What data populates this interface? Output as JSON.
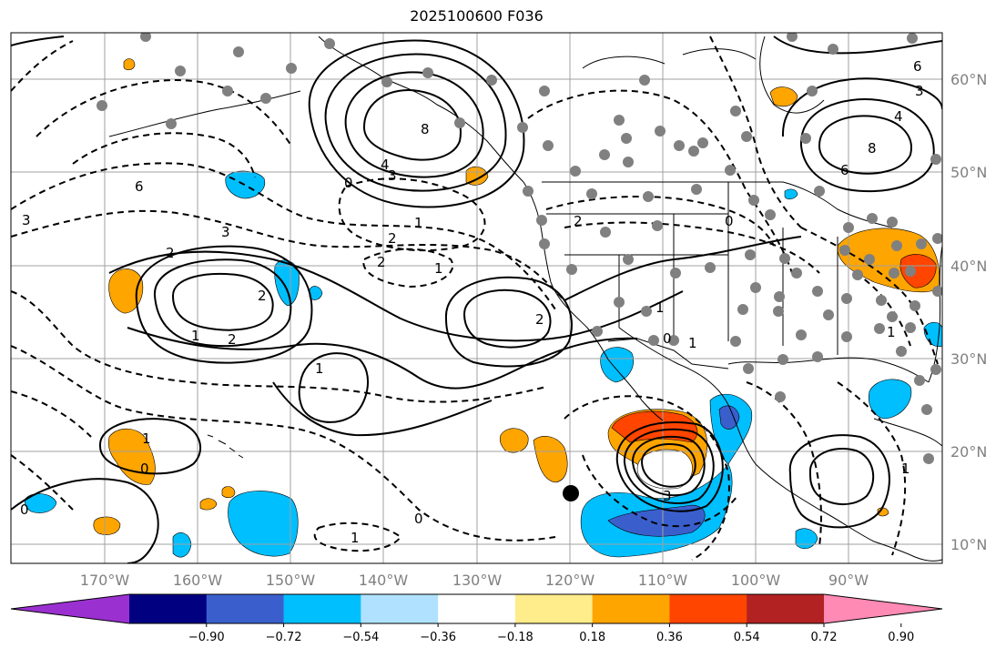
{
  "title": "2025100600 F036",
  "lat_labels": [
    "60°N",
    "50°N",
    "40°N",
    "30°N",
    "20°N",
    "10°N"
  ],
  "lon_labels": [
    "170°W",
    "160°W",
    "150°W",
    "140°W",
    "130°W",
    "120°W",
    "110°W",
    "100°W",
    "90°W"
  ],
  "colorbar": {
    "tick_labels": [
      "−0.90",
      "−0.72",
      "−0.54",
      "−0.36",
      "−0.18",
      "0.18",
      "0.36",
      "0.54",
      "0.72",
      "0.90"
    ],
    "colors": [
      "#9b30d0",
      "#000080",
      "#3a5fcd",
      "#00bfff",
      "#b0e2ff",
      "#ffffff",
      "#ffec8b",
      "#ffa500",
      "#ff4500",
      "#b22222",
      "#ff8ab4"
    ]
  },
  "contour_labels": [
    "8",
    "4",
    "3",
    "0",
    "6",
    "3",
    "8",
    "6",
    "4",
    "3",
    "6",
    "3",
    "2",
    "1",
    "2",
    "2",
    "2",
    "1",
    "2",
    "1",
    "2",
    "1",
    "2",
    "1",
    "0",
    "1",
    "0",
    "1",
    "0",
    "1",
    "3",
    "0",
    "0",
    "1",
    "1"
  ],
  "colors": {
    "contour": "#000000",
    "grid": "#a0a0a0",
    "dot_gray": "#808080"
  }
}
